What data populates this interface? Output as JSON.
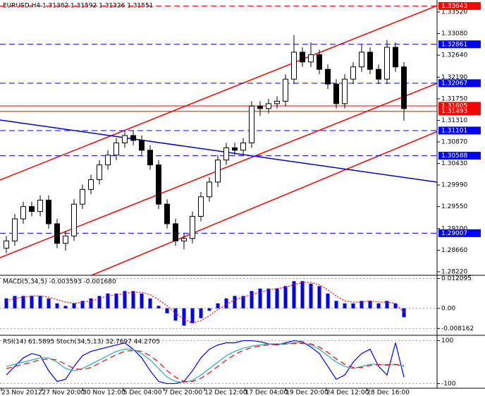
{
  "chart_data": [
    {
      "type": "candlestick",
      "title": "EURUSD,H4  1.31382 1.31592 1.31326 1.31551",
      "x_labels": [
        "23 Nov 2012",
        "27 Nov 20:00",
        "30 Nov 12:00",
        "5 Dec 04:00",
        "7 Dec 20:00",
        "12 Dec 12:00",
        "17 Dec 04:00",
        "19 Dec 20:00",
        "24 Dec 12:00",
        "28 Dec 16:00"
      ],
      "open": [
        1.287,
        1.2885,
        1.293,
        1.2955,
        1.2945,
        1.2968,
        1.292,
        1.288,
        1.2895,
        1.296,
        1.299,
        1.301,
        1.304,
        1.306,
        1.3085,
        1.31,
        1.309,
        1.307,
        1.304,
        1.296,
        1.292,
        1.2885,
        1.289,
        1.2935,
        1.2975,
        1.3005,
        1.305,
        1.3075,
        1.307,
        1.3085,
        1.316,
        1.3155,
        1.3165,
        1.317,
        1.3215,
        1.327,
        1.325,
        1.3265,
        1.3235,
        1.3205,
        1.3165,
        1.3215,
        1.324,
        1.327,
        1.3235,
        1.3215,
        1.328,
        1.324
      ],
      "high": [
        1.2895,
        1.294,
        1.2965,
        1.2965,
        1.2978,
        1.2978,
        1.293,
        1.2905,
        1.297,
        1.3,
        1.302,
        1.305,
        1.307,
        1.3095,
        1.311,
        1.311,
        1.31,
        1.308,
        1.305,
        1.297,
        1.293,
        1.29,
        1.2945,
        1.2985,
        1.3015,
        1.306,
        1.3085,
        1.3085,
        1.3095,
        1.317,
        1.317,
        1.3175,
        1.318,
        1.3225,
        1.3305,
        1.328,
        1.329,
        1.3275,
        1.3245,
        1.3215,
        1.3225,
        1.325,
        1.3285,
        1.328,
        1.3245,
        1.3295,
        1.329,
        1.325
      ],
      "low": [
        1.286,
        1.2875,
        1.292,
        1.2935,
        1.2935,
        1.291,
        1.287,
        1.2865,
        1.2885,
        1.295,
        1.298,
        1.3,
        1.303,
        1.305,
        1.3075,
        1.308,
        1.306,
        1.303,
        1.295,
        1.291,
        1.2875,
        1.2868,
        1.288,
        1.2925,
        1.2965,
        1.2995,
        1.304,
        1.306,
        1.306,
        1.3075,
        1.314,
        1.3145,
        1.3155,
        1.316,
        1.3205,
        1.324,
        1.324,
        1.3225,
        1.3195,
        1.3155,
        1.3155,
        1.3205,
        1.323,
        1.3225,
        1.3205,
        1.3205,
        1.323,
        1.313
      ],
      "close": [
        1.2885,
        1.293,
        1.2955,
        1.2945,
        1.2968,
        1.292,
        1.288,
        1.2895,
        1.296,
        1.299,
        1.301,
        1.304,
        1.306,
        1.3085,
        1.31,
        1.309,
        1.307,
        1.304,
        1.296,
        1.292,
        1.2885,
        1.289,
        1.2935,
        1.2975,
        1.3005,
        1.305,
        1.3075,
        1.307,
        1.3085,
        1.316,
        1.3155,
        1.3165,
        1.317,
        1.3215,
        1.327,
        1.325,
        1.3265,
        1.3235,
        1.3205,
        1.3165,
        1.3215,
        1.324,
        1.327,
        1.3235,
        1.3215,
        1.328,
        1.324,
        1.3155
      ],
      "ylim": [
        1.2822,
        1.3352
      ],
      "yticks": [
        {
          "value": 1.3352,
          "label": "1.33520"
        },
        {
          "value": 1.3308,
          "label": "1.33080"
        },
        {
          "value": 1.3264,
          "label": "1.32640"
        },
        {
          "value": 1.3219,
          "label": "1.32190"
        },
        {
          "value": 1.3175,
          "label": "1.31750"
        },
        {
          "value": 1.3131,
          "label": "1.31310"
        },
        {
          "value": 1.3087,
          "label": "1.30870"
        },
        {
          "value": 1.3043,
          "label": "1.30430"
        },
        {
          "value": 1.2999,
          "label": "1.29990"
        },
        {
          "value": 1.2955,
          "label": "1.29550"
        },
        {
          "value": 1.291,
          "label": "1.29100"
        },
        {
          "value": 1.2866,
          "label": "1.28660"
        },
        {
          "value": 1.2822,
          "label": "1.28220"
        }
      ],
      "levels": [
        {
          "value": 1.33643,
          "color": "#ff0000",
          "style": "dashed"
        },
        {
          "value": 1.32861,
          "color": "#0000ff",
          "style": "dashed"
        },
        {
          "value": 1.32067,
          "color": "#0000ff",
          "style": "dashed"
        },
        {
          "value": 1.31605,
          "color": "#ff0000",
          "style": "solid"
        },
        {
          "value": 1.31493,
          "color": "#ff0000",
          "style": "solid"
        },
        {
          "value": 1.31101,
          "color": "#0000ff",
          "style": "dashed"
        },
        {
          "value": 1.30588,
          "color": "#0000ff",
          "style": "dashed"
        },
        {
          "value": 1.29007,
          "color": "#0000ff",
          "style": "dashed"
        }
      ]
    },
    {
      "type": "macd",
      "title": "MACD(5,34,5) -0.003593 -0.001680",
      "ylim": [
        -0.0095,
        0.0128
      ],
      "yticks": [
        0.012095,
        {
          "value": 0,
          "label": "0.00"
        },
        -0.008162
      ],
      "series": [
        {
          "kind": "bar",
          "color": "#0000ff",
          "values": [
            0.004,
            0.005,
            0.005,
            0.005,
            0.005,
            0.004,
            0.002,
            0.001,
            0.002,
            0.003,
            0.004,
            0.005,
            0.006,
            0.006,
            0.007,
            0.007,
            0.006,
            0.004,
            0.001,
            -0.002,
            -0.005,
            -0.007,
            -0.006,
            -0.004,
            -0.001,
            0.002,
            0.004,
            0.005,
            0.005,
            0.007,
            0.008,
            0.008,
            0.008,
            0.009,
            0.011,
            0.011,
            0.01,
            0.009,
            0.006,
            0.003,
            0.002,
            0.002,
            0.003,
            0.003,
            0.002,
            0.003,
            0.002,
            -0.003593
          ]
        },
        {
          "kind": "line",
          "color": "#ff0000",
          "style": "dotted",
          "values": [
            0.003,
            0.004,
            0.0045,
            0.005,
            0.005,
            0.0045,
            0.0035,
            0.0025,
            0.002,
            0.0025,
            0.003,
            0.004,
            0.005,
            0.0055,
            0.006,
            0.0065,
            0.0065,
            0.0055,
            0.0035,
            0.001,
            -0.002,
            -0.0045,
            -0.006,
            -0.005,
            -0.003,
            -0.0005,
            0.0015,
            0.0035,
            0.0045,
            0.0055,
            0.0065,
            0.0075,
            0.008,
            0.0085,
            0.0095,
            0.0105,
            0.0105,
            0.0095,
            0.0075,
            0.005,
            0.003,
            0.0025,
            0.0025,
            0.003,
            0.0025,
            0.0025,
            0.002,
            -0.00168
          ]
        }
      ]
    },
    {
      "type": "oscillator",
      "title": "RSI(14) 61.5895  Stoch(34,5,13) 32.7697 44.2705",
      "ylim": [
        -115,
        115
      ],
      "yticks": [
        100,
        -100
      ],
      "series": [
        {
          "kind": "line",
          "color": "#0000ff",
          "style": "solid",
          "values": [
            -60,
            -20,
            20,
            40,
            30,
            -40,
            -90,
            -80,
            -20,
            30,
            50,
            60,
            70,
            80,
            90,
            60,
            20,
            -40,
            -90,
            -100,
            -100,
            -90,
            -40,
            20,
            60,
            80,
            90,
            90,
            100,
            100,
            95,
            85,
            80,
            90,
            100,
            95,
            70,
            40,
            -20,
            -80,
            -60,
            0,
            40,
            60,
            -20,
            -60,
            90,
            -70
          ]
        },
        {
          "kind": "line",
          "color": "#20b2aa",
          "style": "solid",
          "values": [
            -20,
            -10,
            0,
            10,
            20,
            20,
            0,
            -30,
            -40,
            -30,
            -10,
            10,
            30,
            50,
            60,
            60,
            40,
            10,
            -30,
            -70,
            -90,
            -95,
            -85,
            -60,
            -30,
            0,
            30,
            50,
            65,
            75,
            80,
            85,
            85,
            85,
            90,
            90,
            80,
            60,
            30,
            0,
            -20,
            -30,
            -20,
            -10,
            -10,
            -15,
            -10,
            -20
          ]
        },
        {
          "kind": "line",
          "color": "#ff0000",
          "style": "dashed",
          "values": [
            -30,
            -20,
            -10,
            0,
            10,
            15,
            10,
            -10,
            -30,
            -35,
            -25,
            -5,
            15,
            35,
            50,
            55,
            50,
            30,
            0,
            -40,
            -70,
            -90,
            -90,
            -75,
            -50,
            -20,
            10,
            35,
            55,
            68,
            75,
            80,
            82,
            84,
            86,
            88,
            85,
            70,
            45,
            15,
            -10,
            -25,
            -25,
            -15,
            -12,
            -12,
            -12,
            -15
          ]
        }
      ]
    }
  ]
}
